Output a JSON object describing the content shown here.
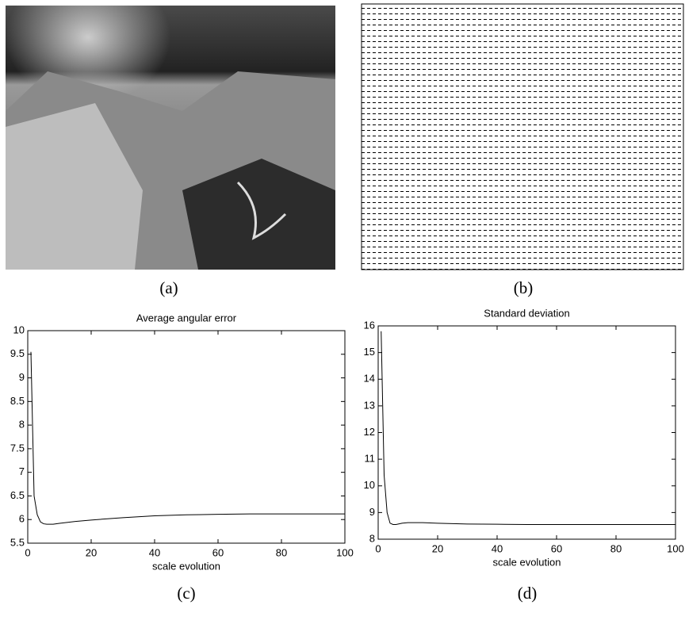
{
  "captions": [
    "(a)",
    "(b)",
    "(c)",
    "(d)"
  ],
  "chart_data": [
    {
      "type": "line",
      "title": "Average angular error",
      "x_label": "scale evolution",
      "x": [
        1,
        2,
        3,
        4,
        5,
        6,
        8,
        10,
        15,
        20,
        30,
        40,
        50,
        60,
        70,
        80,
        90,
        100
      ],
      "values": [
        9.55,
        6.5,
        6.1,
        5.95,
        5.91,
        5.9,
        5.9,
        5.92,
        5.96,
        5.99,
        6.04,
        6.08,
        6.1,
        6.11,
        6.12,
        6.12,
        6.12,
        6.12
      ],
      "color": "#000000",
      "xlim": [
        0,
        100
      ],
      "ylim": [
        5.5,
        10
      ],
      "xticks": [
        0,
        20,
        40,
        60,
        80,
        100
      ],
      "yticks": [
        5.5,
        6,
        6.5,
        7,
        7.5,
        8,
        8.5,
        9,
        9.5,
        10
      ]
    },
    {
      "type": "line",
      "title": "Standard deviation",
      "x_label": "scale evolution",
      "x": [
        1,
        2,
        3,
        4,
        5,
        6,
        8,
        10,
        15,
        20,
        30,
        40,
        50,
        60,
        70,
        80,
        90,
        100
      ],
      "values": [
        15.8,
        10.4,
        9.0,
        8.6,
        8.55,
        8.55,
        8.6,
        8.62,
        8.62,
        8.6,
        8.57,
        8.56,
        8.55,
        8.55,
        8.55,
        8.55,
        8.55,
        8.55
      ],
      "color": "#000000",
      "xlim": [
        0,
        100
      ],
      "ylim": [
        8,
        16
      ],
      "xticks": [
        0,
        20,
        40,
        60,
        80,
        100
      ],
      "yticks": [
        8,
        9,
        10,
        11,
        12,
        13,
        14,
        15,
        16
      ]
    }
  ]
}
